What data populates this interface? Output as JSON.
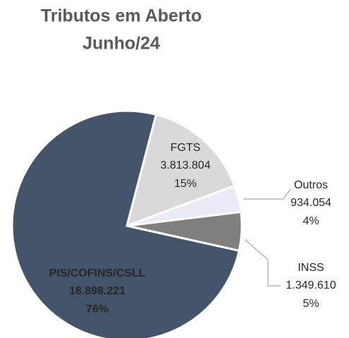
{
  "chart_data": {
    "type": "pie",
    "title": "Tributos em Aberto",
    "subtitle": "Junho/24",
    "categories": [
      "FGTS",
      "Outros",
      "INSS",
      "PIS/COFINS/CSLL"
    ],
    "values": [
      3813804,
      934054,
      1349610,
      18898221
    ],
    "value_labels": [
      "3.813.804",
      "934.054",
      "1.349.610",
      "18.898.221"
    ],
    "percent_labels": [
      "15%",
      "4%",
      "5%",
      "76%"
    ],
    "colors": [
      "#d9d9d9",
      "#e9ecf6",
      "#7f7f7f",
      "#44546a"
    ]
  }
}
